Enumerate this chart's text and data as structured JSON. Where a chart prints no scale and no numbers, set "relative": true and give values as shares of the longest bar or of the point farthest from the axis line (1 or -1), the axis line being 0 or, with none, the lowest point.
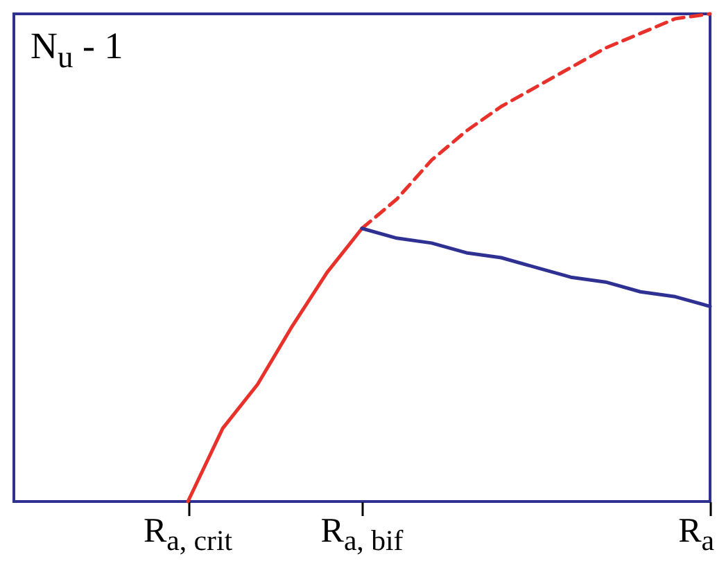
{
  "chart_data": {
    "type": "line",
    "relative": true,
    "ylabel": "N$_{u}$ - 1",
    "categories": [
      null,
      null,
      null,
      null,
      null,
      "R$_{a, crit}$",
      null,
      null,
      null,
      null,
      "R$_{a, bif}$",
      null,
      null,
      null,
      null,
      null,
      null,
      null,
      null,
      null,
      "R$_{a}$"
    ],
    "series": [
      {
        "color": "#e8312a",
        "line_style": "solid",
        "values": [
          null,
          null,
          null,
          null,
          null,
          0,
          0.15,
          0.24,
          0.36,
          0.47,
          0.56,
          null,
          null,
          null,
          null,
          null,
          null,
          null,
          null,
          null,
          null
        ]
      },
      {
        "color": "#e8312a",
        "line_style": "dashed",
        "values": [
          null,
          null,
          null,
          null,
          null,
          null,
          null,
          null,
          null,
          null,
          0.56,
          0.62,
          0.7,
          0.76,
          0.81,
          0.85,
          0.89,
          0.93,
          0.96,
          0.99,
          1
        ]
      },
      {
        "color": "#2e3192",
        "line_style": "solid",
        "values": [
          null,
          null,
          null,
          null,
          null,
          null,
          null,
          null,
          null,
          null,
          0.56,
          0.54,
          0.53,
          0.51,
          0.5,
          0.48,
          0.46,
          0.45,
          0.43,
          0.42,
          0.4
        ]
      }
    ]
  }
}
